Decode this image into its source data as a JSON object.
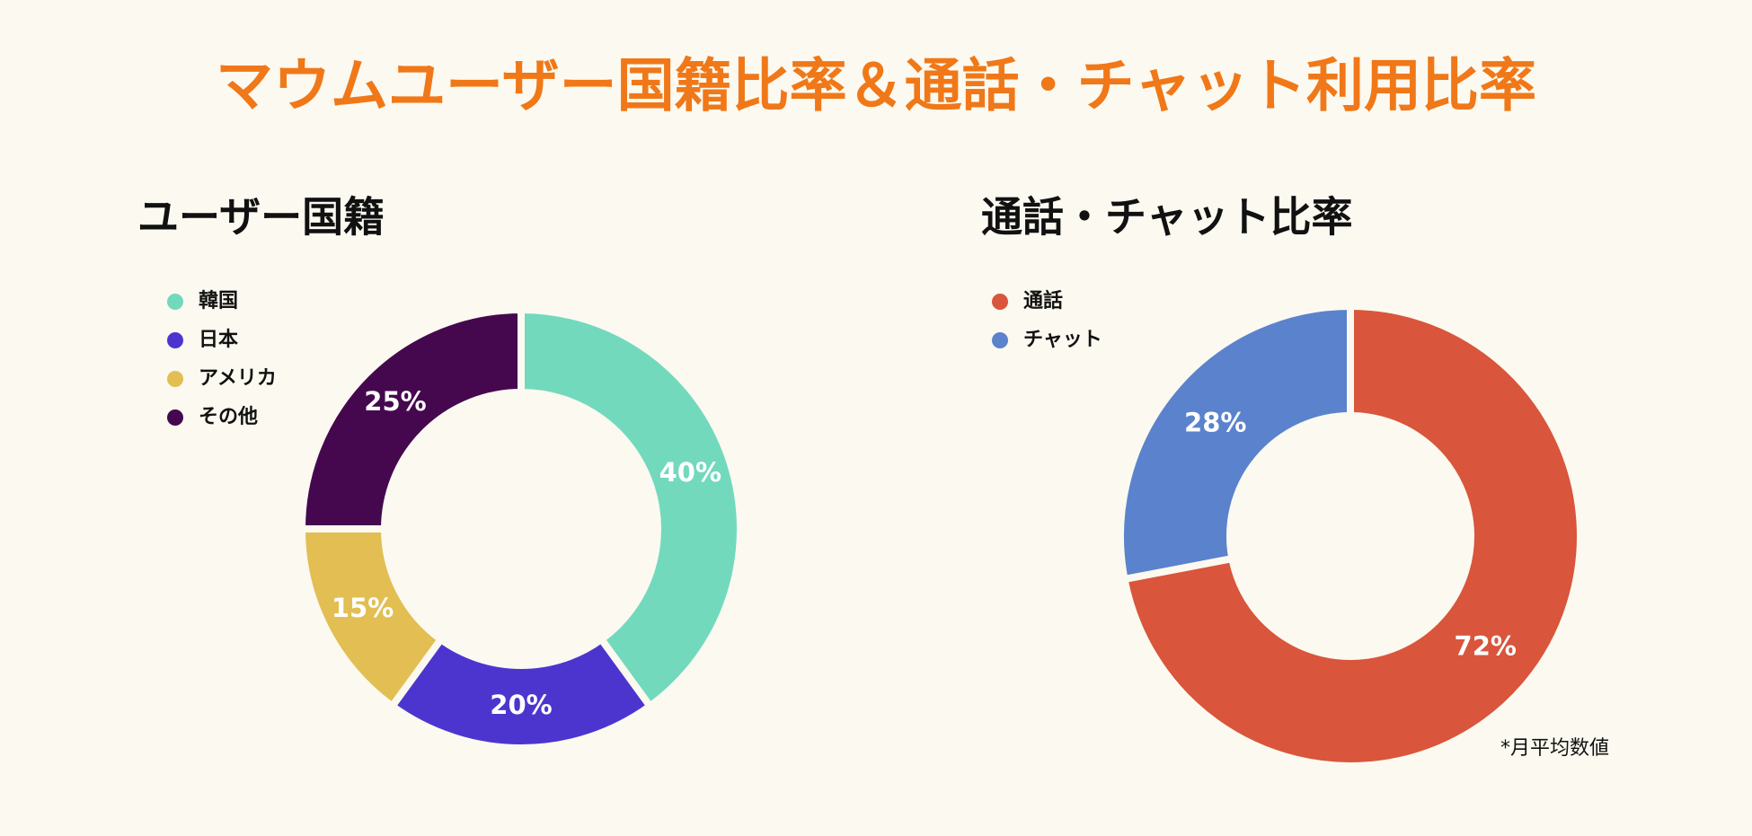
{
  "title": "マウムユーザー国籍比率＆通話・チャット利用比率",
  "note": "*月平均数値",
  "chart_data": [
    {
      "type": "donut",
      "title": "ユーザー国籍",
      "categories": [
        "韓国",
        "日本",
        "アメリカ",
        "その他"
      ],
      "values": [
        40,
        20,
        15,
        25
      ],
      "value_labels": [
        "40%",
        "20%",
        "15%",
        "25%"
      ],
      "colors": [
        "#72d9bd",
        "#4c35cf",
        "#e2be53",
        "#45084f"
      ],
      "legend": "upper left"
    },
    {
      "type": "donut",
      "title": "通話・チャット比率",
      "categories": [
        "通話",
        "チャット"
      ],
      "values": [
        72,
        28
      ],
      "value_labels": [
        "72%",
        "28%"
      ],
      "colors": [
        "#d9553b",
        "#5b82cc"
      ],
      "legend": "upper left"
    }
  ]
}
